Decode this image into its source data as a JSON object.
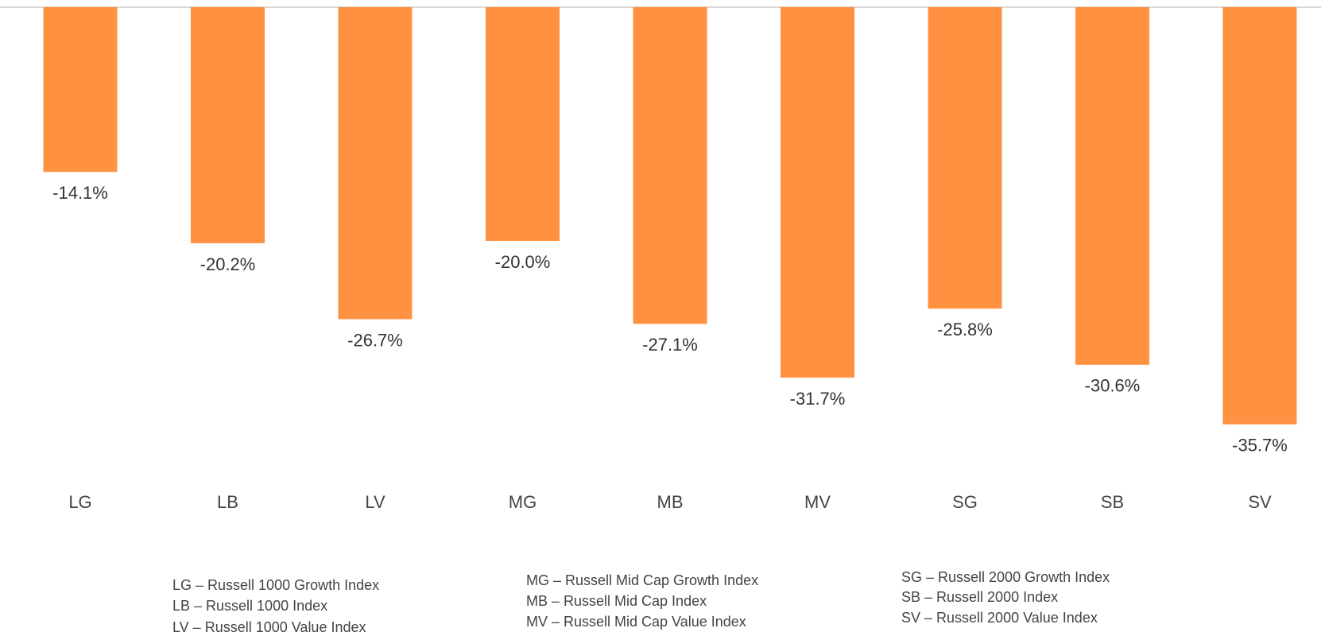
{
  "chart_data": {
    "type": "bar",
    "categories": [
      "LG",
      "LB",
      "LV",
      "MG",
      "MB",
      "MV",
      "SG",
      "SB",
      "SV"
    ],
    "values": [
      -14.1,
      -20.2,
      -26.7,
      -20.0,
      -27.1,
      -31.7,
      -25.8,
      -30.6,
      -35.7
    ],
    "value_labels": [
      "-14.1%",
      "-20.2%",
      "-26.7%",
      "-20.0%",
      "-27.1%",
      "-31.7%",
      "-25.8%",
      "-30.6%",
      "-35.7%"
    ],
    "color": "#ff9140",
    "ylim": [
      -40,
      0
    ],
    "notes": [
      [
        "LG – Russell 1000 Growth Index",
        "LB – Russell 1000 Index",
        "LV – Russell 1000 Value Index"
      ],
      [
        "MG – Russell Mid Cap Growth Index",
        "MB – Russell Mid Cap Index",
        "MV – Russell Mid Cap Value Index"
      ],
      [
        "SG – Russell 2000 Growth Index",
        "SB – Russell 2000 Index",
        "SV – Russell 2000 Value Index"
      ]
    ]
  }
}
